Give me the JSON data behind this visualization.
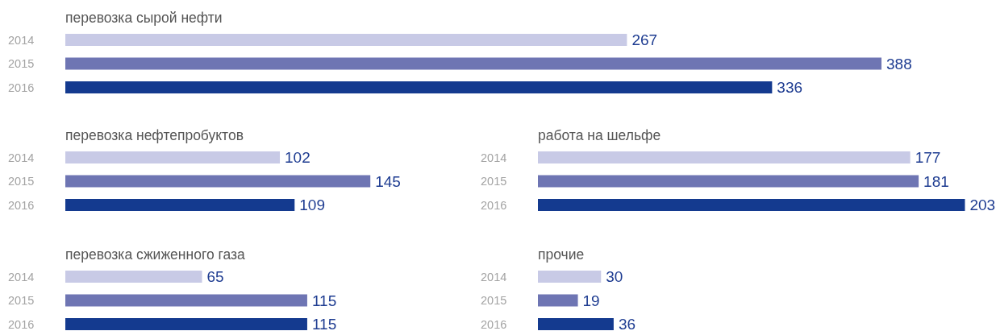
{
  "chart_data": [
    {
      "type": "bar",
      "orientation": "horizontal",
      "title": "перевозка сырой нефти",
      "categories": [
        "2014",
        "2015",
        "2016"
      ],
      "values": [
        267,
        388,
        336
      ],
      "colors": [
        "#c8cae6",
        "#6e75b3",
        "#143a8f"
      ],
      "tick_labels": "y",
      "data_labels": true
    },
    {
      "type": "bar",
      "orientation": "horizontal",
      "title": "перевозка нефтепробуктов",
      "categories": [
        "2014",
        "2015",
        "2016"
      ],
      "values": [
        102,
        145,
        109
      ],
      "colors": [
        "#c8cae6",
        "#6e75b3",
        "#143a8f"
      ],
      "tick_labels": "y",
      "data_labels": true
    },
    {
      "type": "bar",
      "orientation": "horizontal",
      "title": "работа на шельфе",
      "categories": [
        "2014",
        "2015",
        "2016"
      ],
      "values": [
        177,
        181,
        203
      ],
      "colors": [
        "#c8cae6",
        "#6e75b3",
        "#143a8f"
      ],
      "tick_labels": "y",
      "data_labels": true
    },
    {
      "type": "bar",
      "orientation": "horizontal",
      "title": "перевозка сжиженного газа",
      "categories": [
        "2014",
        "2015",
        "2016"
      ],
      "values": [
        65,
        115,
        115
      ],
      "colors": [
        "#c8cae6",
        "#6e75b3",
        "#143a8f"
      ],
      "tick_labels": "y",
      "data_labels": true
    },
    {
      "type": "bar",
      "orientation": "horizontal",
      "title": "прочие",
      "categories": [
        "2014",
        "2015",
        "2016"
      ],
      "values": [
        30,
        19,
        36
      ],
      "colors": [
        "#c8cae6",
        "#6e75b3",
        "#143a8f"
      ],
      "tick_labels": "y",
      "data_labels": true
    }
  ]
}
